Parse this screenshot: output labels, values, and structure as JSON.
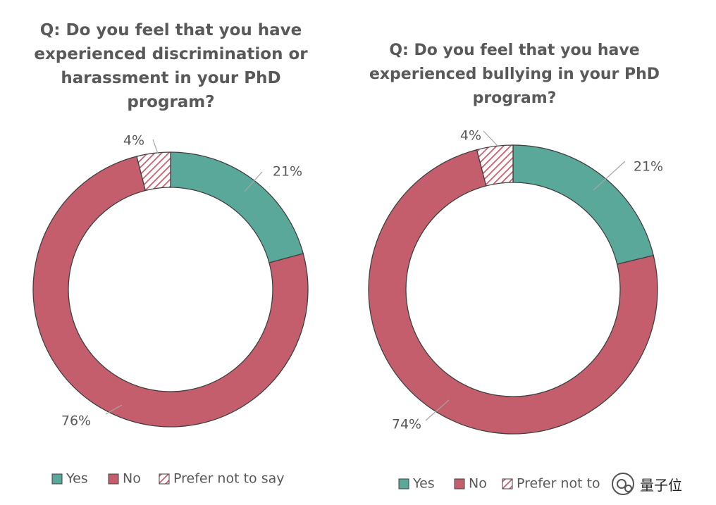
{
  "chart_data": [
    {
      "type": "pie",
      "donut": true,
      "title_lines": [
        "Q: Do you feel that you have",
        "experienced discrimination or",
        "harassment in your PhD",
        "program?"
      ],
      "slices": [
        {
          "label": "Yes",
          "value": 21,
          "value_label": "21%",
          "color": "#5aa89a"
        },
        {
          "label": "No",
          "value": 76,
          "value_label": "76%",
          "color": "#c45e6d"
        },
        {
          "label": "Prefer not to say",
          "value": 4,
          "value_label": "4%",
          "color": "#c45e6d",
          "pattern": "hatch"
        }
      ],
      "legend": {
        "position": "bottom",
        "items": [
          "Yes",
          "No",
          "Prefer not to say"
        ]
      }
    },
    {
      "type": "pie",
      "donut": true,
      "title_lines": [
        "Q: Do you feel that you have",
        "experienced bullying in your PhD",
        "program?"
      ],
      "slices": [
        {
          "label": "Yes",
          "value": 21,
          "value_label": "21%",
          "color": "#5aa89a"
        },
        {
          "label": "No",
          "value": 74,
          "value_label": "74%",
          "color": "#c45e6d"
        },
        {
          "label": "Prefer not to say",
          "value": 4,
          "value_label": "4%",
          "color": "#c45e6d",
          "pattern": "hatch"
        }
      ],
      "legend": {
        "position": "bottom",
        "items": [
          "Yes",
          "No",
          "Prefer not to"
        ]
      }
    }
  ],
  "watermark": {
    "text": "量子位",
    "icon": "wechat-logo-icon"
  }
}
